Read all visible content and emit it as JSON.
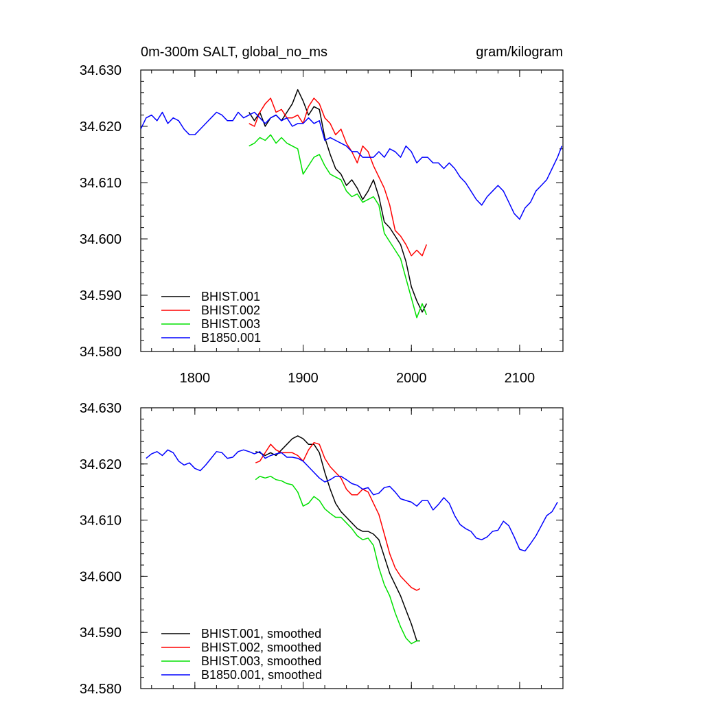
{
  "chart_data": [
    {
      "type": "line",
      "title_left": "0m-300m SALT, global_no_ms",
      "title_right": "gram/kilogram",
      "xlim": [
        1750,
        2140
      ],
      "ylim": [
        34.58,
        34.63
      ],
      "x_ticks": [
        1800,
        1900,
        2000,
        2100
      ],
      "x_tick_labels": [
        "1800",
        "1900",
        "2000",
        "2100"
      ],
      "y_ticks": [
        34.58,
        34.59,
        34.6,
        34.61,
        34.62,
        34.63
      ],
      "y_tick_labels": [
        "34.580",
        "34.590",
        "34.600",
        "34.610",
        "34.620",
        "34.630"
      ],
      "legend_position": "bottom-left",
      "series": [
        {
          "name": "BHIST.001",
          "color": "#000000",
          "x": [
            1850,
            1855,
            1860,
            1865,
            1870,
            1875,
            1880,
            1885,
            1890,
            1895,
            1900,
            1905,
            1910,
            1915,
            1920,
            1925,
            1930,
            1935,
            1940,
            1945,
            1950,
            1955,
            1960,
            1965,
            1970,
            1975,
            1980,
            1985,
            1990,
            1995,
            2000,
            2005,
            2010,
            2014
          ],
          "y": [
            34.6225,
            34.621,
            34.6225,
            34.62,
            34.6215,
            34.622,
            34.621,
            34.6225,
            34.624,
            34.6265,
            34.6245,
            34.622,
            34.6235,
            34.623,
            34.618,
            34.615,
            34.6125,
            34.6115,
            34.6095,
            34.6105,
            34.609,
            34.607,
            34.6085,
            34.6105,
            34.6075,
            34.603,
            34.602,
            34.6005,
            34.599,
            34.596,
            34.5915,
            34.589,
            34.587,
            34.5885
          ]
        },
        {
          "name": "BHIST.002",
          "color": "#ff0000",
          "x": [
            1850,
            1855,
            1860,
            1865,
            1870,
            1875,
            1880,
            1885,
            1890,
            1895,
            1900,
            1905,
            1910,
            1915,
            1920,
            1925,
            1930,
            1935,
            1940,
            1945,
            1950,
            1955,
            1960,
            1965,
            1970,
            1975,
            1980,
            1985,
            1990,
            1995,
            2000,
            2005,
            2010,
            2014
          ],
          "y": [
            34.6205,
            34.62,
            34.6225,
            34.624,
            34.625,
            34.6225,
            34.623,
            34.6215,
            34.6215,
            34.622,
            34.6205,
            34.6235,
            34.625,
            34.624,
            34.6215,
            34.6205,
            34.6185,
            34.6195,
            34.617,
            34.6155,
            34.6135,
            34.6165,
            34.6155,
            34.613,
            34.611,
            34.609,
            34.606,
            34.6015,
            34.6005,
            34.599,
            34.597,
            34.598,
            34.597,
            34.599
          ]
        },
        {
          "name": "BHIST.003",
          "color": "#00e000",
          "x": [
            1850,
            1855,
            1860,
            1865,
            1870,
            1875,
            1880,
            1885,
            1890,
            1895,
            1900,
            1905,
            1910,
            1915,
            1920,
            1925,
            1930,
            1935,
            1940,
            1945,
            1950,
            1955,
            1960,
            1965,
            1970,
            1975,
            1980,
            1985,
            1990,
            1995,
            2000,
            2005,
            2010,
            2014
          ],
          "y": [
            34.6165,
            34.617,
            34.618,
            34.6175,
            34.6185,
            34.617,
            34.618,
            34.617,
            34.6165,
            34.616,
            34.6115,
            34.613,
            34.6145,
            34.615,
            34.613,
            34.6115,
            34.611,
            34.6105,
            34.6085,
            34.6075,
            34.608,
            34.6065,
            34.607,
            34.6075,
            34.606,
            34.601,
            34.5995,
            34.598,
            34.5965,
            34.593,
            34.5895,
            34.586,
            34.5885,
            34.5865
          ]
        },
        {
          "name": "B1850.001",
          "color": "#0000ff",
          "x": [
            1750,
            1755,
            1760,
            1765,
            1770,
            1775,
            1780,
            1785,
            1790,
            1795,
            1800,
            1805,
            1810,
            1815,
            1820,
            1825,
            1830,
            1835,
            1840,
            1845,
            1850,
            1855,
            1860,
            1865,
            1870,
            1875,
            1880,
            1885,
            1890,
            1895,
            1900,
            1905,
            1910,
            1915,
            1920,
            1925,
            1930,
            1935,
            1940,
            1945,
            1950,
            1955,
            1960,
            1965,
            1970,
            1975,
            1980,
            1985,
            1990,
            1995,
            2000,
            2005,
            2010,
            2015,
            2020,
            2025,
            2030,
            2035,
            2040,
            2045,
            2050,
            2055,
            2060,
            2065,
            2070,
            2075,
            2080,
            2085,
            2090,
            2095,
            2100,
            2105,
            2110,
            2115,
            2120,
            2125,
            2130,
            2135,
            2139
          ],
          "y": [
            34.6195,
            34.6215,
            34.622,
            34.621,
            34.6225,
            34.6205,
            34.6215,
            34.621,
            34.6195,
            34.6185,
            34.6185,
            34.6195,
            34.6205,
            34.6215,
            34.6225,
            34.622,
            34.621,
            34.621,
            34.6225,
            34.6215,
            34.622,
            34.6225,
            34.6215,
            34.6205,
            34.6215,
            34.622,
            34.621,
            34.6215,
            34.62,
            34.6205,
            34.6205,
            34.6215,
            34.6205,
            34.621,
            34.6175,
            34.618,
            34.6175,
            34.617,
            34.6165,
            34.6155,
            34.6155,
            34.6145,
            34.6145,
            34.6145,
            34.6155,
            34.6145,
            34.616,
            34.6155,
            34.6145,
            34.6165,
            34.6155,
            34.6135,
            34.6145,
            34.6145,
            34.6135,
            34.6135,
            34.6125,
            34.6135,
            34.6125,
            34.611,
            34.61,
            34.6085,
            34.607,
            34.606,
            34.6075,
            34.6085,
            34.6095,
            34.6085,
            34.6065,
            34.6045,
            34.6035,
            34.6055,
            34.6065,
            34.6085,
            34.6095,
            34.6105,
            34.6125,
            34.6145,
            34.6165
          ]
        }
      ]
    },
    {
      "type": "line",
      "xlim": [
        1750,
        2140
      ],
      "ylim": [
        34.58,
        34.63
      ],
      "x_ticks": [
        1800,
        1900,
        2000,
        2100
      ],
      "y_ticks": [
        34.58,
        34.59,
        34.6,
        34.61,
        34.62,
        34.63
      ],
      "y_tick_labels": [
        "34.580",
        "34.590",
        "34.600",
        "34.610",
        "34.620",
        "34.630"
      ],
      "legend_position": "bottom-left",
      "series": [
        {
          "name": "BHIST.001, smoothed",
          "color": "#000000",
          "x": [
            1856,
            1860,
            1865,
            1870,
            1875,
            1880,
            1885,
            1890,
            1895,
            1900,
            1905,
            1910,
            1915,
            1920,
            1925,
            1930,
            1935,
            1940,
            1945,
            1950,
            1955,
            1960,
            1965,
            1970,
            1975,
            1980,
            1985,
            1990,
            1995,
            2000,
            2005,
            2008
          ],
          "y": [
            34.6222,
            34.622,
            34.6215,
            34.622,
            34.6215,
            34.6225,
            34.6235,
            34.6245,
            34.625,
            34.6245,
            34.6235,
            34.6235,
            34.622,
            34.6185,
            34.6155,
            34.613,
            34.6115,
            34.6105,
            34.6095,
            34.6085,
            34.608,
            34.608,
            34.6075,
            34.6065,
            34.6035,
            34.6005,
            34.5985,
            34.5965,
            34.594,
            34.5915,
            34.5885,
            34.5885
          ]
        },
        {
          "name": "BHIST.002, smoothed",
          "color": "#ff0000",
          "x": [
            1856,
            1860,
            1865,
            1870,
            1875,
            1880,
            1885,
            1890,
            1895,
            1900,
            1905,
            1910,
            1915,
            1920,
            1925,
            1930,
            1935,
            1940,
            1945,
            1950,
            1955,
            1960,
            1965,
            1970,
            1975,
            1980,
            1985,
            1990,
            1995,
            2000,
            2005,
            2008
          ],
          "y": [
            34.6202,
            34.6205,
            34.622,
            34.6235,
            34.6225,
            34.622,
            34.622,
            34.622,
            34.6215,
            34.6205,
            34.6225,
            34.6238,
            34.6235,
            34.621,
            34.6195,
            34.6185,
            34.6175,
            34.6155,
            34.6145,
            34.6145,
            34.6155,
            34.615,
            34.613,
            34.611,
            34.6075,
            34.604,
            34.6015,
            34.6,
            34.599,
            34.598,
            34.5975,
            34.5978
          ]
        },
        {
          "name": "BHIST.003, smoothed",
          "color": "#00e000",
          "x": [
            1856,
            1860,
            1865,
            1870,
            1875,
            1880,
            1885,
            1890,
            1895,
            1900,
            1905,
            1910,
            1915,
            1920,
            1925,
            1930,
            1935,
            1940,
            1945,
            1950,
            1955,
            1960,
            1965,
            1970,
            1975,
            1980,
            1985,
            1990,
            1995,
            2000,
            2005,
            2008
          ],
          "y": [
            34.6172,
            34.6178,
            34.6175,
            34.6178,
            34.6172,
            34.617,
            34.6165,
            34.6163,
            34.615,
            34.6125,
            34.613,
            34.6142,
            34.6135,
            34.612,
            34.6112,
            34.6105,
            34.6105,
            34.6095,
            34.6085,
            34.6072,
            34.6065,
            34.6068,
            34.6055,
            34.6015,
            34.5985,
            34.5965,
            34.5935,
            34.591,
            34.589,
            34.588,
            34.5885,
            34.5885
          ]
        },
        {
          "name": "B1850.001, smoothed",
          "color": "#0000ff",
          "x": [
            1755,
            1760,
            1765,
            1770,
            1775,
            1780,
            1785,
            1790,
            1795,
            1800,
            1805,
            1810,
            1815,
            1820,
            1825,
            1830,
            1835,
            1840,
            1845,
            1850,
            1855,
            1860,
            1865,
            1870,
            1875,
            1880,
            1885,
            1890,
            1895,
            1900,
            1905,
            1910,
            1915,
            1920,
            1925,
            1930,
            1935,
            1940,
            1945,
            1950,
            1955,
            1960,
            1965,
            1970,
            1975,
            1980,
            1985,
            1990,
            1995,
            2000,
            2005,
            2010,
            2015,
            2020,
            2025,
            2030,
            2035,
            2040,
            2045,
            2050,
            2055,
            2060,
            2065,
            2070,
            2075,
            2080,
            2085,
            2090,
            2095,
            2100,
            2105,
            2110,
            2115,
            2120,
            2125,
            2130,
            2135
          ],
          "y": [
            34.621,
            34.6218,
            34.6222,
            34.6215,
            34.6225,
            34.622,
            34.6205,
            34.6198,
            34.6202,
            34.6192,
            34.6188,
            34.6198,
            34.621,
            34.6222,
            34.622,
            34.621,
            34.6212,
            34.6222,
            34.6225,
            34.6222,
            34.6218,
            34.6222,
            34.621,
            34.6215,
            34.6218,
            34.622,
            34.6212,
            34.6212,
            34.621,
            34.6205,
            34.6195,
            34.6185,
            34.6175,
            34.6168,
            34.6172,
            34.6178,
            34.6178,
            34.6172,
            34.6165,
            34.6162,
            34.6155,
            34.6158,
            34.6145,
            34.6148,
            34.6158,
            34.616,
            34.615,
            34.6138,
            34.6135,
            34.6132,
            34.6125,
            34.6135,
            34.6135,
            34.6118,
            34.6128,
            34.614,
            34.613,
            34.6108,
            34.6092,
            34.6085,
            34.608,
            34.6068,
            34.6065,
            34.607,
            34.608,
            34.6082,
            34.6098,
            34.609,
            34.607,
            34.6048,
            34.6045,
            34.6058,
            34.6072,
            34.609,
            34.6108,
            34.6115,
            34.6132
          ]
        }
      ]
    }
  ]
}
